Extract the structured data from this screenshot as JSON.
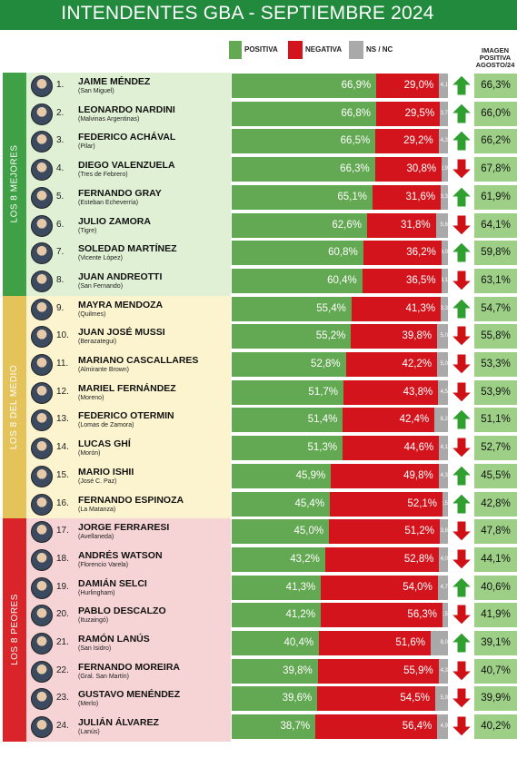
{
  "title": "INTENDENTES GBA - SEPTIEMBRE 2024",
  "colors": {
    "header": "#218a3c",
    "positiva": "#63a852",
    "negativa": "#d4141c",
    "nsnc": "#a9a9a9",
    "prior": "#9dd086",
    "arrow_up": "#2fa02f",
    "arrow_down": "#cf1116"
  },
  "legend": {
    "positiva": "POSITIVA",
    "negativa": "NEGATIVA",
    "nsnc": "NS / NC"
  },
  "prior_header": [
    "IMAGEN",
    "POSITIVA",
    "AGOSTO/24"
  ],
  "groups": [
    {
      "label": "LOS 8 MEJORES",
      "color": "#3fa045",
      "bg": "#dff0d4"
    },
    {
      "label": "LOS 8 DEL MEDIO",
      "color": "#e4c35a",
      "bg": "#fbf4cf"
    },
    {
      "label": "LOS 8 PEORES",
      "color": "#d9252a",
      "bg": "#f6d3d5"
    }
  ],
  "chart_data": {
    "type": "bar",
    "stacked": true,
    "orientation": "horizontal",
    "series_names": [
      "POSITIVA",
      "NEGATIVA",
      "NS / NC"
    ],
    "rows": [
      {
        "rank": "1.",
        "name": "JAIME MÉNDEZ",
        "muni": "(San Miguel)",
        "pos": 66.9,
        "pos_label": "66,9%",
        "neg": 29.0,
        "neg_label": "29,0%",
        "ns": 4.1,
        "ns_label": "4,1",
        "trend": "up",
        "prior": "66,3%"
      },
      {
        "rank": "2.",
        "name": "LEONARDO NARDINI",
        "muni": "(Malvinas Argentinas)",
        "pos": 66.8,
        "pos_label": "66,8%",
        "neg": 29.5,
        "neg_label": "29,5%",
        "ns": 3.7,
        "ns_label": "3,7",
        "trend": "up",
        "prior": "66,0%"
      },
      {
        "rank": "3.",
        "name": "FEDERICO ACHÁVAL",
        "muni": "(Pilar)",
        "pos": 66.5,
        "pos_label": "66,5%",
        "neg": 29.2,
        "neg_label": "29,2%",
        "ns": 4.3,
        "ns_label": "4,3",
        "trend": "up",
        "prior": "66,2%"
      },
      {
        "rank": "4.",
        "name": "DIEGO VALENZUELA",
        "muni": "(Tres de Febrero)",
        "pos": 66.3,
        "pos_label": "66,3%",
        "neg": 30.8,
        "neg_label": "30,8%",
        "ns": 2.9,
        "ns_label": "2,9",
        "trend": "down",
        "prior": "67,8%"
      },
      {
        "rank": "5.",
        "name": "FERNANDO GRAY",
        "muni": "(Esteban Echeverría)",
        "pos": 65.1,
        "pos_label": "65,1%",
        "neg": 31.6,
        "neg_label": "31,6%",
        "ns": 3.3,
        "ns_label": "3,3",
        "trend": "up",
        "prior": "61,9%"
      },
      {
        "rank": "6.",
        "name": "JULIO ZAMORA",
        "muni": "(Tigre)",
        "pos": 62.6,
        "pos_label": "62,6%",
        "neg": 31.8,
        "neg_label": "31,8%",
        "ns": 5.6,
        "ns_label": "5,6",
        "trend": "down",
        "prior": "64,1%"
      },
      {
        "rank": "7.",
        "name": "SOLEDAD MARTÍNEZ",
        "muni": "(Vicente López)",
        "pos": 60.8,
        "pos_label": "60,8%",
        "neg": 36.2,
        "neg_label": "36,2%",
        "ns": 3.0,
        "ns_label": "3,0",
        "trend": "up",
        "prior": "59,8%"
      },
      {
        "rank": "8.",
        "name": "JUAN ANDREOTTI",
        "muni": "(San Fernando)",
        "pos": 60.4,
        "pos_label": "60,4%",
        "neg": 36.5,
        "neg_label": "36,5%",
        "ns": 3.1,
        "ns_label": "3,1",
        "trend": "down",
        "prior": "63,1%"
      },
      {
        "rank": "9.",
        "name": "MAYRA MENDOZA",
        "muni": "(Quilmes)",
        "pos": 55.4,
        "pos_label": "55,4%",
        "neg": 41.3,
        "neg_label": "41,3%",
        "ns": 3.3,
        "ns_label": "3,3",
        "trend": "up",
        "prior": "54,7%"
      },
      {
        "rank": "10.",
        "name": "JUAN JOSÉ MUSSI",
        "muni": "(Berazategui)",
        "pos": 55.2,
        "pos_label": "55,2%",
        "neg": 39.8,
        "neg_label": "39,8%",
        "ns": 5.0,
        "ns_label": "5,0",
        "trend": "down",
        "prior": "55,8%"
      },
      {
        "rank": "11.",
        "name": "MARIANO CASCALLARES",
        "muni": "(Almirante Brown)",
        "pos": 52.8,
        "pos_label": "52,8%",
        "neg": 42.2,
        "neg_label": "42,2%",
        "ns": 5.0,
        "ns_label": "5,0",
        "trend": "down",
        "prior": "53,3%"
      },
      {
        "rank": "12.",
        "name": "MARIEL FERNÁNDEZ",
        "muni": "(Moreno)",
        "pos": 51.7,
        "pos_label": "51,7%",
        "neg": 43.8,
        "neg_label": "43,8%",
        "ns": 4.5,
        "ns_label": "4,5",
        "trend": "down",
        "prior": "53,9%"
      },
      {
        "rank": "13.",
        "name": "FEDERICO OTERMIN",
        "muni": "(Lomas de Zamora)",
        "pos": 51.4,
        "pos_label": "51,4%",
        "neg": 42.4,
        "neg_label": "42,4%",
        "ns": 6.2,
        "ns_label": "6,2",
        "trend": "up",
        "prior": "51,1%"
      },
      {
        "rank": "14.",
        "name": "LUCAS GHÍ",
        "muni": "(Morón)",
        "pos": 51.3,
        "pos_label": "51,3%",
        "neg": 44.6,
        "neg_label": "44,6%",
        "ns": 4.1,
        "ns_label": "4,1",
        "trend": "down",
        "prior": "52,7%"
      },
      {
        "rank": "15.",
        "name": "MARIO ISHII",
        "muni": "(José C. Paz)",
        "pos": 45.9,
        "pos_label": "45,9%",
        "neg": 49.8,
        "neg_label": "49,8%",
        "ns": 4.3,
        "ns_label": "4,3",
        "trend": "up",
        "prior": "45,5%"
      },
      {
        "rank": "16.",
        "name": "FERNANDO ESPINOZA",
        "muni": "(La Matanza)",
        "pos": 45.4,
        "pos_label": "45,4%",
        "neg": 52.1,
        "neg_label": "52,1%",
        "ns": 2.5,
        "ns_label": "2,5",
        "trend": "up",
        "prior": "42,8%"
      },
      {
        "rank": "17.",
        "name": "JORGE FERRARESI",
        "muni": "(Avellaneda)",
        "pos": 45.0,
        "pos_label": "45,0%",
        "neg": 51.2,
        "neg_label": "51,2%",
        "ns": 3.8,
        "ns_label": "3,8",
        "trend": "down",
        "prior": "47,8%"
      },
      {
        "rank": "18.",
        "name": "ANDRÉS WATSON",
        "muni": "(Florencio Varela)",
        "pos": 43.2,
        "pos_label": "43,2%",
        "neg": 52.8,
        "neg_label": "52,8%",
        "ns": 4.0,
        "ns_label": "4,0",
        "trend": "down",
        "prior": "44,1%"
      },
      {
        "rank": "19.",
        "name": "DAMIÁN SELCI",
        "muni": "(Hurlingham)",
        "pos": 41.3,
        "pos_label": "41,3%",
        "neg": 54.0,
        "neg_label": "54,0%",
        "ns": 4.7,
        "ns_label": "4,7",
        "trend": "up",
        "prior": "40,6%"
      },
      {
        "rank": "20.",
        "name": "PABLO DESCALZO",
        "muni": "(Ituzaingó)",
        "pos": 41.2,
        "pos_label": "41,2%",
        "neg": 56.3,
        "neg_label": "56,3%",
        "ns": 2.5,
        "ns_label": "2,5",
        "trend": "down",
        "prior": "41,9%"
      },
      {
        "rank": "21.",
        "name": "RAMÓN LANÚS",
        "muni": "(San Isidro)",
        "pos": 40.4,
        "pos_label": "40,4%",
        "neg": 51.6,
        "neg_label": "51,6%",
        "ns": 8.0,
        "ns_label": "8,0",
        "trend": "up",
        "prior": "39,1%"
      },
      {
        "rank": "22.",
        "name": "FERNANDO MOREIRA",
        "muni": "(Gral. San Martín)",
        "pos": 39.8,
        "pos_label": "39,8%",
        "neg": 55.9,
        "neg_label": "55,9%",
        "ns": 4.3,
        "ns_label": "4,3",
        "trend": "down",
        "prior": "40,7%"
      },
      {
        "rank": "23.",
        "name": "GUSTAVO MENÉNDEZ",
        "muni": "(Merlo)",
        "pos": 39.6,
        "pos_label": "39,6%",
        "neg": 54.5,
        "neg_label": "54,5%",
        "ns": 5.9,
        "ns_label": "5,9",
        "trend": "down",
        "prior": "39,9%"
      },
      {
        "rank": "24.",
        "name": "JULIÁN ÁLVAREZ",
        "muni": "(Lanús)",
        "pos": 38.7,
        "pos_label": "38,7%",
        "neg": 56.4,
        "neg_label": "56,4%",
        "ns": 4.9,
        "ns_label": "4,9",
        "trend": "down",
        "prior": "40,2%"
      }
    ]
  }
}
